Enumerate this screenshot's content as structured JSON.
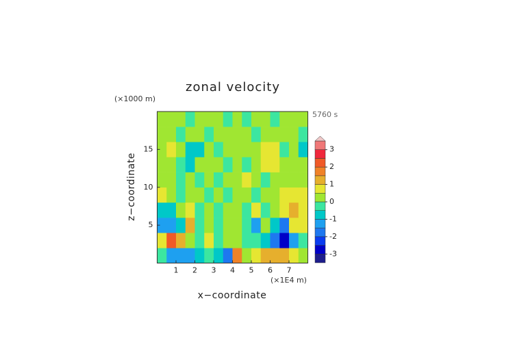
{
  "chart_data": {
    "type": "contour",
    "title": "zonal velocity",
    "y_unit": "(×1000 m)",
    "x_unit": "(×1E4 m)",
    "time": "5760 s",
    "xlabel": "x−coordinate",
    "ylabel": "z−coordinate",
    "xlim": [
      0,
      8
    ],
    "ylim": [
      0,
      20
    ],
    "xticks": [
      1,
      2,
      3,
      4,
      5,
      6,
      7
    ],
    "yticks": [
      5,
      10,
      15
    ],
    "x": [
      0.25,
      0.75,
      1.25,
      1.75,
      2.25,
      2.75,
      3.25,
      3.75,
      4.25,
      4.75,
      5.25,
      5.75,
      6.25,
      6.75,
      7.25,
      7.75
    ],
    "y": [
      1,
      3,
      5,
      7,
      9,
      11,
      13,
      15,
      17,
      19
    ],
    "z": [
      [
        -0.3,
        -1.3,
        -1.5,
        -1.4,
        -0.8,
        -0.2,
        -0.6,
        -1.8,
        1.6,
        0.4,
        0.6,
        1.1,
        1.3,
        1.3,
        0.7,
        0.4
      ],
      [
        0.7,
        2.3,
        1.3,
        0.4,
        -0.4,
        0.6,
        -0.4,
        0.3,
        0.4,
        -0.2,
        -0.4,
        -0.9,
        -1.8,
        -2.6,
        -1.2,
        -0.5
      ],
      [
        -1.2,
        -1.5,
        -0.6,
        1.2,
        -0.3,
        0.2,
        -0.3,
        0.3,
        0.3,
        -0.4,
        -1.3,
        0.3,
        -0.8,
        -1.6,
        0.6,
        0.8
      ],
      [
        -0.7,
        -0.6,
        0.3,
        0.5,
        -0.4,
        0.3,
        -0.5,
        0.3,
        0.3,
        -0.3,
        0.5,
        -0.4,
        0.4,
        0.7,
        1.1,
        0.9
      ],
      [
        0.5,
        0.3,
        -0.2,
        0.2,
        0.4,
        -0.3,
        0.3,
        -0.4,
        0.4,
        0.3,
        -0.3,
        0.2,
        0.4,
        0.6,
        0.8,
        0.5
      ],
      [
        0.3,
        0.2,
        -0.4,
        0.3,
        -0.2,
        0.4,
        -0.5,
        0.3,
        0.3,
        0.6,
        0.4,
        -0.3,
        0.3,
        0.4,
        0.3,
        0.4
      ],
      [
        0.2,
        0.3,
        -0.3,
        -0.7,
        0.3,
        0.2,
        0.4,
        -0.2,
        0.3,
        -0.3,
        0.3,
        0.8,
        0.6,
        0.3,
        0.2,
        0.1
      ],
      [
        0.3,
        0.6,
        0.2,
        -0.8,
        -0.6,
        0.3,
        -0.3,
        0.2,
        0.2,
        0.4,
        0.2,
        0.6,
        0.7,
        -0.2,
        0.2,
        -0.6
      ],
      [
        0.1,
        0.3,
        -0.3,
        0.4,
        0.2,
        -0.3,
        0.3,
        0.1,
        0.2,
        0.3,
        -0.2,
        0.4,
        0.3,
        0.2,
        0.1,
        -0.2
      ],
      [
        0.2,
        0.1,
        0.2,
        -0.2,
        0.3,
        0.3,
        0.1,
        -0.1,
        0.2,
        -0.1,
        0.1,
        0.3,
        -0.3,
        0.2,
        0.1,
        0.2
      ]
    ],
    "levels": [
      -3.5,
      -3,
      -2.5,
      -2,
      -1.5,
      -1,
      -0.5,
      0,
      0.5,
      1,
      1.5,
      2,
      2.5,
      3,
      3.5
    ],
    "colors": [
      "#1e1e8c",
      "#0000c8",
      "#0a3cf0",
      "#1e78f0",
      "#1ea0f0",
      "#00c8c8",
      "#3ce6a0",
      "#a0e632",
      "#e6e632",
      "#e6af2d",
      "#f08228",
      "#f05a28",
      "#f0283c",
      "#f07878",
      "#f0a8a8"
    ],
    "over_color": "#f0c8c8",
    "colorbar_ticks": [
      3,
      2,
      1,
      0,
      -1,
      -2,
      -3
    ]
  }
}
